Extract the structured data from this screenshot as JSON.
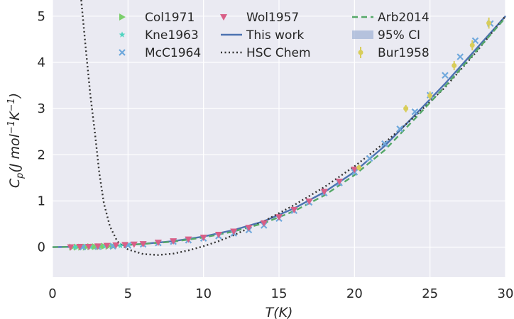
{
  "chart_data": {
    "type": "scatter",
    "xlabel": "T(K)",
    "ylabel": "C_p(J mol⁻¹K⁻¹)",
    "xlim": [
      0,
      30
    ],
    "ylim": [
      -0.65,
      5.35
    ],
    "xticks": [
      "0",
      "5",
      "10",
      "15",
      "20",
      "25",
      "30"
    ],
    "yticks": [
      "0",
      "1",
      "2",
      "3",
      "4",
      "5"
    ],
    "grid": true,
    "legend_position": "top",
    "background": "#eaeaf2",
    "series": [
      {
        "name": "Col1971",
        "kind": "scatter",
        "marker": "triangle-right",
        "color": "#7ccf6c",
        "x": [
          1.3,
          1.6,
          1.9,
          2.2,
          2.5,
          2.8,
          3.1,
          3.4,
          3.7,
          4.0
        ],
        "y": [
          0.0,
          0.0,
          0.0,
          0.0,
          0.01,
          0.01,
          0.01,
          0.02,
          0.02,
          0.02
        ]
      },
      {
        "name": "Kne1963",
        "kind": "scatter",
        "marker": "star",
        "color": "#50d4c0",
        "x": [
          1.5,
          2.0,
          2.5,
          3.0,
          3.5,
          4.0,
          4.5,
          5.0
        ],
        "y": [
          0.0,
          0.0,
          0.01,
          0.01,
          0.02,
          0.02,
          0.03,
          0.04
        ]
      },
      {
        "name": "McC1964",
        "kind": "scatter",
        "marker": "x",
        "color": "#6fa8dc",
        "x": [
          2,
          3,
          4,
          5,
          6,
          7,
          8,
          9,
          10,
          11,
          12,
          13,
          14,
          15,
          16,
          17,
          18,
          19,
          20,
          21,
          22,
          23,
          24,
          25,
          26,
          27,
          28,
          29
        ],
        "y": [
          0.0,
          0.01,
          0.02,
          0.04,
          0.06,
          0.09,
          0.12,
          0.15,
          0.19,
          0.24,
          0.3,
          0.37,
          0.47,
          0.62,
          0.79,
          0.97,
          1.17,
          1.39,
          1.62,
          1.92,
          2.24,
          2.56,
          2.93,
          3.29,
          3.72,
          4.12,
          4.47,
          4.84
        ]
      },
      {
        "name": "Wol1957",
        "kind": "scatter",
        "marker": "triangle-down",
        "color": "#d95f87",
        "x": [
          1.2,
          1.8,
          2.4,
          3.0,
          3.6,
          4.2,
          4.8,
          5.4,
          6.0,
          7.0,
          8.0,
          9.0,
          10.0,
          11.0,
          12.0,
          13.0,
          14.0,
          15.0,
          16.0,
          17.0,
          18.0,
          19.0,
          20.0
        ],
        "y": [
          0.0,
          0.01,
          0.01,
          0.02,
          0.03,
          0.04,
          0.05,
          0.06,
          0.07,
          0.1,
          0.13,
          0.17,
          0.21,
          0.27,
          0.34,
          0.42,
          0.52,
          0.65,
          0.81,
          0.99,
          1.2,
          1.42,
          1.68
        ]
      },
      {
        "name": "This work",
        "kind": "line",
        "style": "solid",
        "color": "#4c72b0",
        "x": [
          0,
          2,
          4,
          6,
          8,
          10,
          12,
          14,
          16,
          18,
          20,
          22,
          24,
          26,
          28,
          30
        ],
        "y": [
          0.0,
          0.01,
          0.03,
          0.07,
          0.13,
          0.23,
          0.37,
          0.56,
          0.84,
          1.19,
          1.63,
          2.19,
          2.86,
          3.54,
          4.27,
          5.0
        ]
      },
      {
        "name": "HSC Chem",
        "kind": "line",
        "style": "dotted",
        "color": "#333333",
        "x": [
          1.9,
          2.2,
          2.5,
          2.8,
          3.1,
          3.4,
          3.8,
          4.3,
          5.0,
          6.0,
          7.0,
          8.0,
          9.0,
          10.0,
          11.0,
          12.0,
          13.0,
          14.0,
          16.0,
          18.0,
          20.0,
          22.0,
          24.0,
          26.0,
          28.0,
          30.0
        ],
        "y": [
          5.35,
          4.3,
          3.3,
          2.5,
          1.6,
          0.95,
          0.45,
          0.12,
          -0.05,
          -0.15,
          -0.17,
          -0.14,
          -0.07,
          0.02,
          0.13,
          0.26,
          0.41,
          0.56,
          0.91,
          1.3,
          1.75,
          2.26,
          2.83,
          3.46,
          4.2,
          5.0
        ]
      },
      {
        "name": "Arb2014",
        "kind": "line",
        "style": "dashed",
        "color": "#55a868",
        "x": [
          0,
          2,
          4,
          6,
          8,
          10,
          12,
          14,
          16,
          18,
          20,
          22,
          24,
          26,
          28,
          30
        ],
        "y": [
          0.0,
          0.01,
          0.03,
          0.07,
          0.12,
          0.21,
          0.34,
          0.52,
          0.78,
          1.12,
          1.56,
          2.1,
          2.78,
          3.48,
          4.22,
          4.97
        ]
      },
      {
        "name": "95% CI",
        "kind": "band",
        "color": "#a3b4d6",
        "x": [
          0,
          2,
          4,
          6,
          8,
          10,
          12,
          14,
          16,
          18,
          20,
          22,
          24,
          26,
          28,
          30
        ],
        "y": [
          0.0,
          0.01,
          0.03,
          0.07,
          0.13,
          0.23,
          0.37,
          0.56,
          0.84,
          1.19,
          1.63,
          2.19,
          2.86,
          3.54,
          4.27,
          5.0
        ],
        "band_half_width": [
          0.01,
          0.01,
          0.01,
          0.01,
          0.01,
          0.01,
          0.01,
          0.01,
          0.02,
          0.02,
          0.02,
          0.02,
          0.02,
          0.02,
          0.03,
          0.03
        ]
      },
      {
        "name": "Bur1958",
        "kind": "errorbar",
        "marker": "circle",
        "color": "#d8cd5a",
        "x": [
          20.3,
          23.4,
          25.0,
          26.6,
          27.8,
          28.9
        ],
        "y": [
          1.72,
          3.0,
          3.28,
          3.93,
          4.37,
          4.85
        ],
        "yerr": [
          0.06,
          0.08,
          0.09,
          0.1,
          0.11,
          0.12
        ]
      }
    ]
  }
}
